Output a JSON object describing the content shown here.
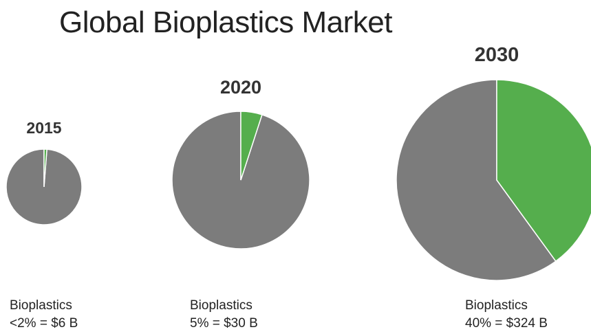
{
  "chart_data": {
    "type": "pie",
    "title": "Global Bioplastics Market",
    "colors": {
      "bioplastics": "#55ae4d",
      "other": "#7c7c7c",
      "separator": "#ffffff"
    },
    "pies": [
      {
        "year": "2015",
        "caption_line1": "Bioplastics",
        "caption_line2": "<2% = $6 B",
        "bioplastics_share": 0.012,
        "other_share": 0.988,
        "market_size_b": 6
      },
      {
        "year": "2020",
        "caption_line1": "Bioplastics",
        "caption_line2": "5% = $30 B",
        "bioplastics_share": 0.05,
        "other_share": 0.95,
        "market_size_b": 30
      },
      {
        "year": "2030",
        "caption_line1": "Bioplastics",
        "caption_line2": "40% = $324 B",
        "bioplastics_share": 0.4,
        "other_share": 0.6,
        "market_size_b": 324
      }
    ]
  }
}
